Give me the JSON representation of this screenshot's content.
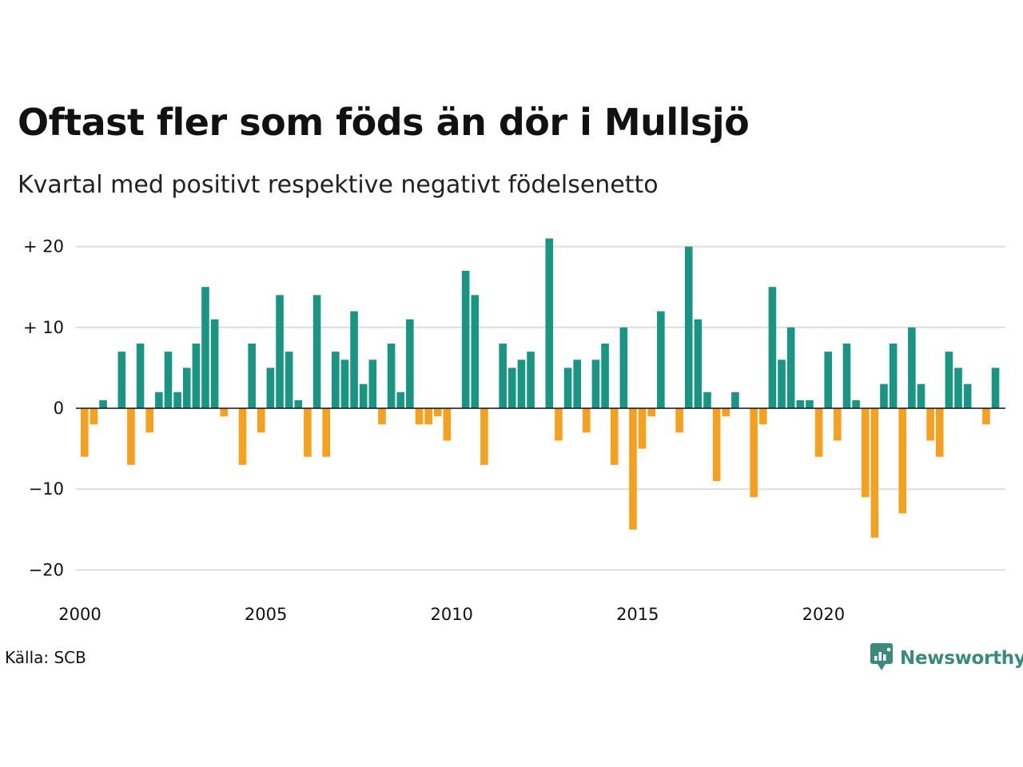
{
  "title": "Oftast fler som föds än dör i Mullsjö",
  "subtitle": "Kvartal med positivt respektive negativt födelsenetto",
  "source": "Källa: SCB",
  "brand": {
    "name": "Newsworthy",
    "icon": "newsworthy-logo-icon"
  },
  "colors": {
    "positive": "#1a9483",
    "negative": "#f5a01f",
    "grid": "#dddddd",
    "zero": "#111111"
  },
  "chart_data": {
    "type": "bar",
    "x_unit": "quarter",
    "start": "2000 Q1",
    "ylim": [
      -22,
      22
    ],
    "grid": true,
    "y_ticks": [
      {
        "value": 20,
        "label": "+ 20"
      },
      {
        "value": 10,
        "label": "+ 10"
      },
      {
        "value": 0,
        "label": "0"
      },
      {
        "value": -10,
        "label": "−10"
      },
      {
        "value": -20,
        "label": "−20"
      }
    ],
    "x_ticks": [
      "2000",
      "2005",
      "2010",
      "2015",
      "2020"
    ],
    "values": [
      -6,
      -2,
      1,
      0,
      7,
      -7,
      8,
      -3,
      2,
      7,
      2,
      5,
      8,
      15,
      11,
      -1,
      0,
      -7,
      8,
      -3,
      5,
      14,
      7,
      1,
      -6,
      14,
      -6,
      7,
      6,
      12,
      3,
      6,
      -2,
      8,
      2,
      11,
      -2,
      -2,
      -1,
      -4,
      0,
      17,
      14,
      -7,
      0,
      8,
      5,
      6,
      7,
      0,
      21,
      -4,
      5,
      6,
      -3,
      6,
      8,
      -7,
      10,
      -15,
      -5,
      -1,
      12,
      0,
      -3,
      20,
      11,
      2,
      -9,
      -1,
      2,
      0,
      -11,
      -2,
      15,
      6,
      10,
      1,
      1,
      -6,
      7,
      -4,
      8,
      1,
      -11,
      -16,
      3,
      8,
      -13,
      10,
      3,
      -4,
      -6,
      7,
      5,
      3,
      0,
      -2,
      5
    ]
  }
}
